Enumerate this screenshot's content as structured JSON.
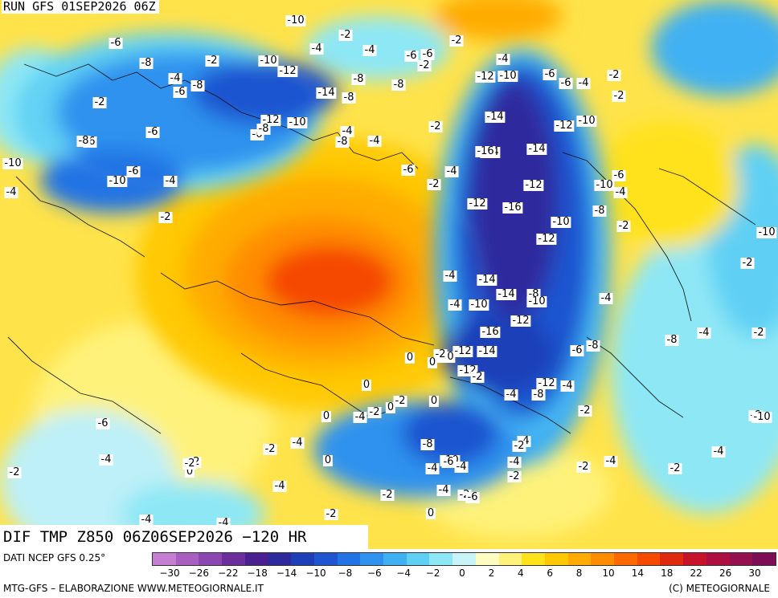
{
  "header": {
    "run_label": "RUN GFS 01SEP2026 06Z"
  },
  "map_title": "DIF TMP Z850 06Z06SEP2026 −120 HR",
  "footer": {
    "source": "DATI NCEP GFS 0.25°",
    "credit": "MTG-GFS – ELABORAZIONE WWW.METEOGIORNALE.IT",
    "copyright": "(C) METEOGIORNALE"
  },
  "legend": {
    "colors": [
      "#c57fd2",
      "#a85fc0",
      "#8b48b0",
      "#6a2f9c",
      "#4a1f90",
      "#2e2a9e",
      "#1f3fb8",
      "#1f55d0",
      "#2273e4",
      "#2e92ee",
      "#3fb1f2",
      "#5fd0f4",
      "#8ee7f5",
      "#c8f4f8",
      "#fffcc0",
      "#fff27a",
      "#ffe21a",
      "#ffc800",
      "#ffab00",
      "#ff8c00",
      "#ff6a00",
      "#f54a00",
      "#e02a10",
      "#c8142a",
      "#ad1040",
      "#95104e",
      "#7d0e56"
    ],
    "tick_labels": [
      "−30",
      "−26",
      "−22",
      "−18",
      "−14",
      "−10",
      "−8",
      "−6",
      "−4",
      "−2",
      "0",
      "2",
      "4",
      "6",
      "8",
      "10",
      "14",
      "18",
      "22",
      "26",
      "30"
    ]
  },
  "map_labels": [
    "-4",
    "-2",
    "-4",
    "-6",
    "-6",
    "-4",
    "-4",
    "-2",
    "-10",
    "-6",
    "-4",
    "-6",
    "-8",
    "-2",
    "-12",
    "-4",
    "-2",
    "-8",
    "-6",
    "-14",
    "-8",
    "-8",
    "-6",
    "-4",
    "-2",
    "-12",
    "-10",
    "-6",
    "-8",
    "-4",
    "-10",
    "-12",
    "-10",
    "-14",
    "-14",
    "-6",
    "-16",
    "-12",
    "-10",
    "-14",
    "-12",
    "-6",
    "-10",
    "-8",
    "-12",
    "-16",
    "-10",
    "-12",
    "-6",
    "-4",
    "-14",
    "-14",
    "-10",
    "-8",
    "-12",
    "-16",
    "-12",
    "-14",
    "-10",
    "-12",
    "-8",
    "-12",
    "-6",
    "-8",
    "-4",
    "-2",
    "-2",
    "-4",
    "-4",
    "-2",
    "-4",
    "-2",
    "-8",
    "-10",
    "-6",
    "-4",
    "-2",
    "-6",
    "-4",
    "-6",
    "-2",
    "-6",
    "-8",
    "-10",
    "-4",
    "-2",
    "-2",
    "-4",
    "-4",
    "-6",
    "-2",
    "-4",
    "-8",
    "-10",
    "-2",
    "0",
    "0",
    "0",
    "0",
    "-2",
    "0",
    "-2",
    "-4",
    "0",
    "-6",
    "-4",
    "-2",
    "0",
    "-2",
    "0",
    "-2",
    "-4",
    "-8",
    "-4",
    "-10",
    "-4",
    "-6",
    "-4",
    "-2",
    "-4",
    "-2",
    "-2",
    "-4",
    "-4",
    "-2",
    "0",
    "-2",
    "-4",
    "-2",
    "-4",
    "-6",
    "-4",
    "-2",
    "-4",
    "-2",
    "-10",
    "-10",
    "-6",
    "-8",
    "-2",
    "-4",
    "-2"
  ]
}
